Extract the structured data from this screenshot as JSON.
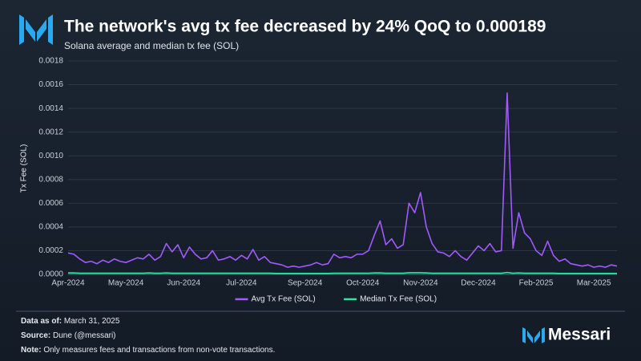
{
  "chart_data": {
    "type": "line",
    "title": "The network's avg tx fee decreased by 24% QoQ to 0.000189",
    "subtitle": "Solana average and median tx fee (SOL)",
    "y_label": "Tx Fee (SOL)",
    "categories": [
      "Apr-2024",
      null,
      null,
      null,
      null,
      null,
      null,
      null,
      null,
      null,
      "May-2024",
      null,
      null,
      null,
      null,
      null,
      null,
      null,
      null,
      null,
      "Jun-2024",
      null,
      null,
      null,
      null,
      null,
      null,
      null,
      null,
      null,
      "Jul-2024",
      null,
      null,
      null,
      null,
      null,
      null,
      null,
      null,
      null,
      null,
      "Sep-2024",
      null,
      null,
      null,
      null,
      null,
      null,
      null,
      null,
      null,
      "Oct-2024",
      null,
      null,
      null,
      null,
      null,
      null,
      null,
      null,
      null,
      "Nov-2024",
      null,
      null,
      null,
      null,
      null,
      null,
      null,
      null,
      null,
      "Dec-2024",
      null,
      null,
      null,
      null,
      null,
      null,
      null,
      null,
      null,
      "Feb-2025",
      null,
      null,
      null,
      null,
      null,
      null,
      null,
      null,
      null,
      "Mar-2025",
      null,
      null,
      null,
      null
    ],
    "series": [
      {
        "name": "Avg Tx Fee (SOL)",
        "color": "#a259ff",
        "values": [
          0.00018,
          0.00017,
          0.00013,
          0.0001,
          0.00011,
          9e-05,
          0.00012,
          0.0001,
          0.00013,
          0.00011,
          0.0001,
          0.00012,
          0.00014,
          0.00013,
          0.00017,
          0.00012,
          0.00015,
          0.00026,
          0.00019,
          0.00025,
          0.00014,
          0.00023,
          0.00017,
          0.00013,
          0.00014,
          0.0002,
          0.00012,
          0.00013,
          0.00015,
          0.00012,
          0.00016,
          0.00013,
          0.00021,
          0.00012,
          0.00015,
          0.0001,
          9e-05,
          8e-05,
          6e-05,
          7e-05,
          6e-05,
          7e-05,
          8e-05,
          0.0001,
          8e-05,
          9e-05,
          0.00017,
          0.00014,
          0.00015,
          0.00014,
          0.00017,
          0.00017,
          0.0002,
          0.00033,
          0.00045,
          0.00025,
          0.0003,
          0.00022,
          0.00025,
          0.0006,
          0.00052,
          0.00069,
          0.0004,
          0.00026,
          0.00019,
          0.00018,
          0.00015,
          0.0002,
          0.00015,
          0.00012,
          0.00018,
          0.00024,
          0.0002,
          0.00026,
          0.00019,
          0.0002,
          0.00153,
          0.00022,
          0.00052,
          0.00035,
          0.0003,
          0.0002,
          0.00016,
          0.00028,
          0.00016,
          0.00011,
          0.00013,
          9e-05,
          8e-05,
          7e-05,
          8e-05,
          6e-05,
          7e-05,
          6e-05,
          8e-05,
          7e-05
        ]
      },
      {
        "name": "Median Tx Fee (SOL)",
        "color": "#2ee8a0",
        "values": [
          1.2e-05,
          1.2e-05,
          1e-05,
          1e-05,
          1e-05,
          1e-05,
          1e-05,
          1e-05,
          1e-05,
          1e-05,
          1e-05,
          1e-05,
          1e-05,
          1e-05,
          1.2e-05,
          1e-05,
          1e-05,
          1.2e-05,
          1e-05,
          1e-05,
          1e-05,
          1e-05,
          1e-05,
          1e-05,
          1e-05,
          1e-05,
          1e-05,
          1e-05,
          1e-05,
          1e-05,
          1e-05,
          1e-05,
          1e-05,
          1e-05,
          1e-05,
          1e-05,
          8e-06,
          8e-06,
          8e-06,
          8e-06,
          8e-06,
          8e-06,
          8e-06,
          8e-06,
          8e-06,
          8e-06,
          1e-05,
          1e-05,
          1e-05,
          1e-05,
          1e-05,
          1e-05,
          1e-05,
          1.2e-05,
          1.2e-05,
          1e-05,
          1e-05,
          1e-05,
          1e-05,
          1.4e-05,
          1.4e-05,
          1.4e-05,
          1.2e-05,
          1e-05,
          1e-05,
          1e-05,
          1e-05,
          1e-05,
          1e-05,
          1e-05,
          1e-05,
          1e-05,
          1e-05,
          1e-05,
          1e-05,
          1e-05,
          1.6e-05,
          1e-05,
          1.2e-05,
          1e-05,
          1e-05,
          1e-05,
          1e-05,
          1e-05,
          1e-05,
          8e-06,
          8e-06,
          8e-06,
          8e-06,
          8e-06,
          8e-06,
          8e-06,
          8e-06,
          8e-06,
          8e-06,
          8e-06
        ]
      }
    ],
    "ylim": [
      0,
      0.0018
    ],
    "yticks": [
      {
        "value": 0,
        "label": "0.0000"
      },
      {
        "value": 0.0002,
        "label": "0.0002"
      },
      {
        "value": 0.0004,
        "label": "0.0004"
      },
      {
        "value": 0.0006,
        "label": "0.0006"
      },
      {
        "value": 0.0008,
        "label": "0.0008"
      },
      {
        "value": 0.001,
        "label": "0.0010"
      },
      {
        "value": 0.0012,
        "label": "0.0012"
      },
      {
        "value": 0.0014,
        "label": "0.0014"
      },
      {
        "value": 0.0016,
        "label": "0.0016"
      },
      {
        "value": 0.0018,
        "label": "0.0018"
      }
    ],
    "grid": true
  },
  "footer": {
    "data_as_of_label": "Data as of:",
    "data_as_of": "March 31, 2025",
    "source_label": "Source:",
    "source": "Dune (@messari)",
    "note_label": "Note:",
    "note": "Only measures fees and transactions from non-vote transactions.",
    "brand": "Messari"
  }
}
